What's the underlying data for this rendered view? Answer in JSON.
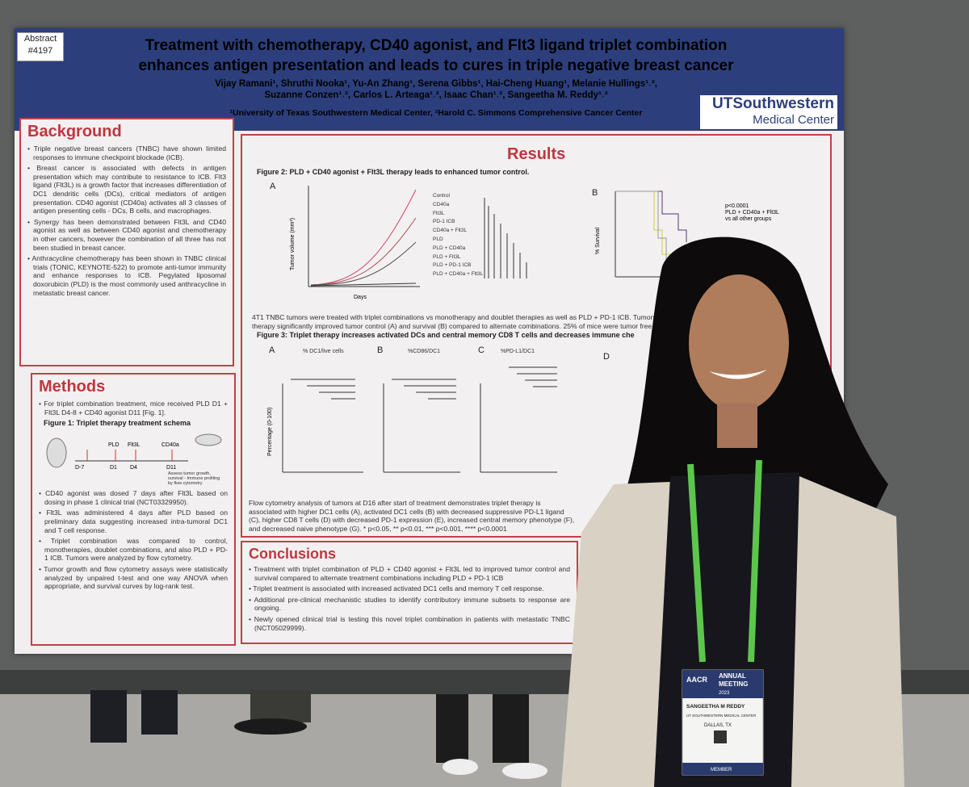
{
  "abstract_tag": [
    "Abstract",
    "#4197"
  ],
  "header": {
    "title_lines": [
      "Treatment with chemotherapy, CD40 agonist, and Flt3 ligand triplet combination",
      "enhances antigen presentation and leads to cures in triple negative breast cancer"
    ],
    "authors_lines": [
      "Vijay Ramani¹, Shruthi Nooka¹, Yu-An Zhang¹, Serena Gibbs¹, Hai-Cheng Huang¹, Melanie Hullings¹˒²,",
      "Suzanne Conzen¹˒², Carlos L. Arteaga¹˒², Isaac Chan¹˒², Sangeetha M. Reddy¹˒²"
    ],
    "affiliation": "¹University of Texas Southwestern Medical Center, ²Harold C. Simmons Comprehensive Cancer Center",
    "logo": [
      "UTSouthwestern",
      "Medical Center"
    ]
  },
  "background": {
    "heading": "Background",
    "bullets": [
      "Triple negative breast cancers (TNBC) have shown limited responses to immune checkpoint blockade (ICB).",
      "Breast cancer is associated with defects in antigen presentation which may contribute to resistance to ICB. Flt3 ligand (Flt3L) is a growth factor that increases differentiation of DC1 dendritic cells (DCs), critical mediators of antigen presentation. CD40 agonist (CD40a) activates all 3 classes of antigen presenting cells - DCs, B cells, and macrophages.",
      "Synergy has been demonstrated between Flt3L and CD40 agonist as well as between CD40 agonist and chemotherapy in other cancers, however the combination of all three has not been studied in breast cancer.",
      "Anthracycline chemotherapy has been shown in TNBC clinical trials (TONIC, KEYNOTE-522) to promote anti-tumor immunity and enhance responses to ICB. Pegylated liposomal doxorubicin (PLD) is the most commonly used anthracycline in metastatic breast cancer."
    ]
  },
  "methods": {
    "heading": "Methods",
    "intro": [
      "For triplet combination treatment, mice received PLD D1 + Flt3L D4-8 + CD40 agonist D11 [Fig. 1]."
    ],
    "figure_title": "Figure 1: Triplet therapy treatment schema",
    "schema_labels": [
      "D-7",
      "D1",
      "D4",
      "D11",
      "PLD",
      "Flt3L",
      "CD40a",
      "Assess tumor growth, survival - Immune profiling by flow cytometry"
    ],
    "bullets": [
      "CD40 agonist was dosed 7 days after Flt3L based on dosing in phase 1 clinical trial (NCT03329950).",
      "Flt3L was administered 4 days after PLD based on preliminary data suggesting increased intra-tumoral DC1 and T cell response.",
      "Triplet combination was compared to control, monotherapies, doublet combinations, and also PLD + PD-1 ICB. Tumors were analyzed by flow cytometry.",
      "Tumor growth and flow cytometry assays were statistically analyzed by unpaired t-test and one way ANOVA when appropriate, and survival curves by log-rank test."
    ]
  },
  "results": {
    "heading": "Results",
    "figure2_title": "Figure 2: PLD + CD40 agonist + Flt3L therapy leads to enhanced tumor control.",
    "figure2_panels": [
      "A",
      "B"
    ],
    "figure2_y_label": "Tumor volume (mm³)",
    "figure2_x_label": "Days",
    "survival_y_label": "% Survival",
    "survival_note": [
      "p<0.0001",
      "PLD + CD40a + Flt3L",
      "vs all other groups"
    ],
    "figure2_legend": [
      "Control",
      "CD40a",
      "Flt3L",
      "PD-1 ICB",
      "CD40a + Flt3L",
      "PLD",
      "PLD + CD40a",
      "PLD + Flt3L",
      "PLD + PD-1 ICB",
      "PLD + CD40a + Flt3L"
    ],
    "figure2_caption": [
      "4T1 TNBC tumors were treated with triplet combinations vs monotherapy and doublet therapies as well as PLD + PD-1 ICB. Tumors w",
      "therapy significantly improved tumor control (A) and survival (B) compared to alternate combinations. 25% of mice were tumor free"
    ],
    "figure3_title": "Figure 3: Triplet therapy increases activated DCs and central memory CD8 T cells and decreases immune che",
    "figure3_panels": [
      "A",
      "B",
      "C",
      "D"
    ],
    "figure3_panel_titles": [
      "% DC1/live cells",
      "%CD86/DC1",
      "%PD-L1/DC1"
    ],
    "figure3_y_label": "Percentage (0-100)",
    "figure3_caption": "Flow cytometry analysis of tumors at D16 after start of treatment demonstrates triplet therapy is associated with higher DC1 cells (A), activated DC1 cells (B) with decreased suppressive PD-L1 ligand (C), higher CD8 T cells (D) with decreased PD-1 expression (E), increased central memory phenotype (F), and decreased naive phenotype (G). * p<0.05, ** p<0.01, *** p<0.001, **** p<0.0001"
  },
  "conclusions": {
    "heading": "Conclusions",
    "bullets": [
      "Treatment with triplet combination of PLD + CD40 agonist + Flt3L led to improved tumor control and survival compared to alternate treatment combinations including PLD + PD-1 ICB",
      "Triplet treatment is associated with increased activated DC1 cells and memory T cell response.",
      "Additional pre-clinical mechanistic studies to identify contributory immune subsets to response are ongoing.",
      "Newly opened clinical trial is testing this novel triplet combination in patients with metastatic TNBC (NCT05029999)."
    ]
  },
  "badge": {
    "org": "AACR",
    "event": [
      "ANNUAL",
      "MEETING",
      "2023"
    ],
    "name": "SANGEETHA M REDDY",
    "affiliation": "UT SOUTHWESTERN MEDICAL CENTER",
    "location": "DALLAS, TX",
    "type": "MEMBER"
  }
}
